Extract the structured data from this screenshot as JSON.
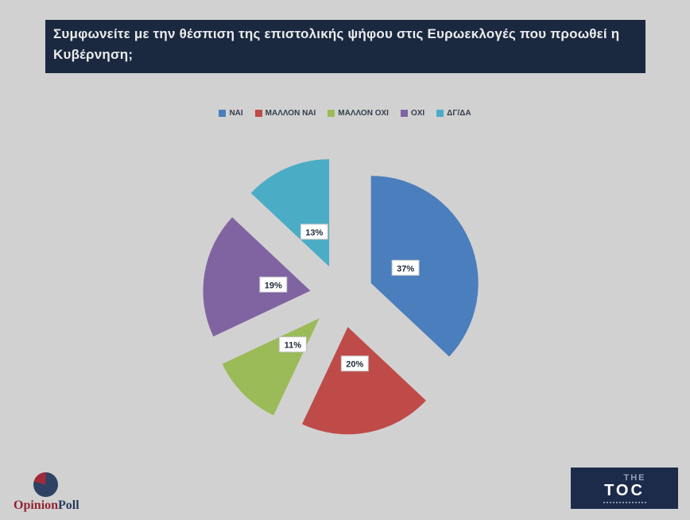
{
  "header": {
    "question": "Συμφωνείτε με την θέσπιση της επιστολικής ψήφου στις Ευρωεκλογές που προωθεί η Κυβέρνηση;"
  },
  "colors": {
    "background": "#d2d1d1",
    "header_bg": "#1a2940",
    "header_text": "#ececec",
    "label_box_bg": "#ffffff",
    "label_box_border": "#c2c2c2",
    "label_text": "#1f2a3a"
  },
  "chart_data": {
    "type": "pie",
    "title": "",
    "legend_position": "top",
    "exploded": true,
    "start_angle_deg": 0,
    "direction": "clockwise",
    "slices": [
      {
        "label": "ΝΑΙ",
        "value": 37,
        "display": "37%",
        "color": "#4a7ebc"
      },
      {
        "label": "ΜΑΛΛΟΝ ΝΑΙ",
        "value": 20,
        "display": "20%",
        "color": "#be4b48"
      },
      {
        "label": "ΜΑΛΛΟΝ ΟΧΙ",
        "value": 11,
        "display": "11%",
        "color": "#9bbb59"
      },
      {
        "label": "ΟΧΙ",
        "value": 19,
        "display": "19%",
        "color": "#8064a2"
      },
      {
        "label": "ΔΓ/ΔΑ",
        "value": 13,
        "display": "13%",
        "color": "#4bacc6"
      }
    ]
  },
  "footer": {
    "opinionpoll": {
      "text_primary": "Opinion",
      "text_secondary": "Poll",
      "primary_color": "#8f2430",
      "secondary_color": "#253a5e",
      "mark_red": "#a02a38",
      "mark_navy": "#2e4263"
    },
    "toc": {
      "line1": "THE",
      "line2": "TOC"
    }
  }
}
